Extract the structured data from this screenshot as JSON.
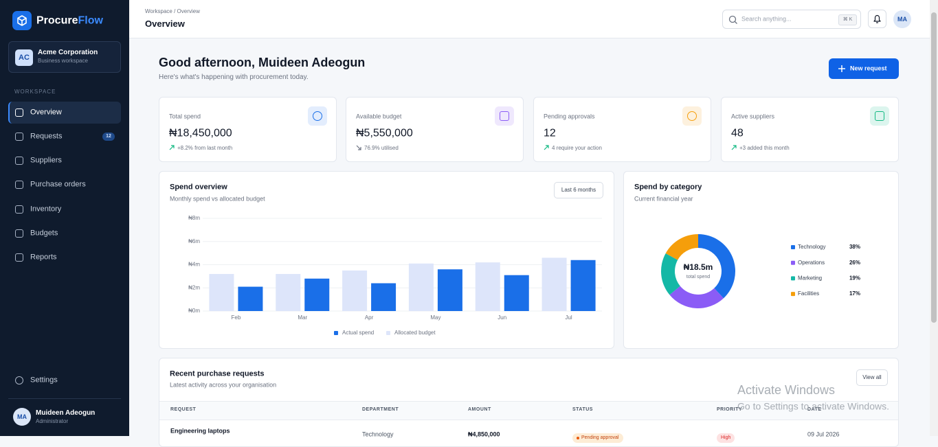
{
  "sidebar": {
    "brand": {
      "first": "Procure",
      "second": "Flow"
    },
    "org": {
      "initials": "AC",
      "name": "Acme Corporation",
      "subtitle": "Business workspace"
    },
    "section": "WORKSPACE",
    "nav": [
      {
        "label": "Overview"
      },
      {
        "label": "Requests",
        "badge": "12"
      },
      {
        "label": "Suppliers"
      },
      {
        "label": "Purchase orders"
      },
      {
        "label": "Inventory"
      },
      {
        "label": "Budgets"
      },
      {
        "label": "Reports"
      }
    ],
    "settings": "Settings",
    "user": {
      "initials": "MA",
      "name": "Muideen Adeogun",
      "role": "Administrator"
    }
  },
  "header": {
    "breadcrumb": "Workspace / Overview",
    "title": "Overview",
    "search_placeholder": "Search anything...",
    "shortcut": "⌘ K",
    "avatar": "MA"
  },
  "greeting": {
    "title": "Good afternoon, Muideen Adeogun",
    "subtitle": "Here's what's happening with procurement today.",
    "button": "New request"
  },
  "stats": [
    {
      "label": "Total spend",
      "value": "₦18,450,000",
      "note": "+8.2% from last month"
    },
    {
      "label": "Available budget",
      "value": "₦5,550,000",
      "note": "76.9% utilised"
    },
    {
      "label": "Pending approvals",
      "value": "12",
      "note": "4 require your action"
    },
    {
      "label": "Active suppliers",
      "value": "48",
      "note": "+3 added this month"
    }
  ],
  "chart_data": [
    {
      "type": "bar",
      "title": "Spend overview",
      "subtitle": "Monthly spend vs allocated budget",
      "range_label": "Last 6 months",
      "categories": [
        "Feb",
        "Mar",
        "Apr",
        "May",
        "Jun",
        "Jul"
      ],
      "series": [
        {
          "name": "Actual spend",
          "color": "#1a6fe8",
          "values": [
            2.1,
            2.8,
            2.4,
            3.6,
            3.1,
            4.4
          ]
        },
        {
          "name": "Allocated budget",
          "color": "#dde5fa",
          "values": [
            3.2,
            3.2,
            3.5,
            4.1,
            4.2,
            4.6
          ]
        }
      ],
      "ylim": [
        0,
        8
      ],
      "yticks": [
        {
          "value": 0,
          "label": "₦0m"
        },
        {
          "value": 2,
          "label": "₦2m"
        },
        {
          "value": 4,
          "label": "₦4m"
        },
        {
          "value": 6,
          "label": "₦6m"
        },
        {
          "value": 8,
          "label": "₦8m"
        }
      ],
      "grid": true
    },
    {
      "type": "pie",
      "title": "Spend by category",
      "subtitle": "Current financial year",
      "center_label": "₦18.5m",
      "center_sublabel": "total spend",
      "categories": [
        "Technology",
        "Operations",
        "Marketing",
        "Facilities"
      ],
      "values": [
        38,
        26,
        19,
        17
      ],
      "value_labels": [
        "38%",
        "26%",
        "19%",
        "17%"
      ],
      "colors": [
        "#1a6fe8",
        "#8b5cf6",
        "#14b8a6",
        "#f59e0b"
      ]
    }
  ],
  "recent_requests": {
    "title": "Recent purchase requests",
    "subtitle": "Latest activity across your organisation",
    "view_all": "View all",
    "columns": [
      "REQUEST",
      "DEPARTMENT",
      "AMOUNT",
      "STATUS",
      "PRIORITY",
      "DATE"
    ],
    "rows": [
      [
        "Engineering laptops",
        "Technology",
        "₦4,850,000",
        "Pending approval",
        "High",
        "09 Jul 2026"
      ]
    ]
  },
  "os_overlay": {
    "title": "Activate Windows",
    "subtitle": "Go to Settings to activate Windows."
  }
}
